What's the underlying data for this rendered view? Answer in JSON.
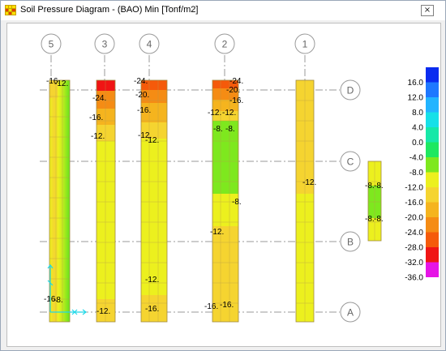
{
  "window": {
    "title": "Soil Pressure Diagram - (BAO)  Min  [Tonf/m2]",
    "close_label": "×"
  },
  "grid": {
    "columns": [
      "5",
      "3",
      "4",
      "2",
      "1"
    ],
    "rows": [
      "D",
      "C",
      "B",
      "A"
    ]
  },
  "strip_labels": {
    "s5": [
      "-16.",
      "-12.",
      "-16.",
      "-8."
    ],
    "s3": [
      "-24.",
      "-16.",
      "-12.",
      "-12."
    ],
    "s4": [
      "-24.",
      "-20.",
      "-16.",
      "-12.",
      "-12.",
      "-12.",
      "-16."
    ],
    "s2": [
      "-24.",
      "-20.",
      "-16.",
      "-12.",
      "-12.",
      "-8.",
      "-8.",
      "-8.",
      "-12.",
      "-16.",
      "-16."
    ],
    "s1": [
      "-12."
    ],
    "s6": [
      "-8.",
      "-8.",
      "-8.",
      "-8."
    ]
  },
  "legend": {
    "entries": [
      "16.0",
      "12.0",
      "8.0",
      "4.0",
      "0.0",
      "-4.0",
      "-8.0",
      "-12.0",
      "-16.0",
      "-20.0",
      "-24.0",
      "-28.0",
      "-32.0",
      "-36.0"
    ],
    "colors": [
      "#0a2cf0",
      "#1e78ff",
      "#22b4ff",
      "#16e0e8",
      "#16e8a8",
      "#1ee860",
      "#7ee81e",
      "#ecf01e",
      "#f5d430",
      "#f5b41e",
      "#f58c14",
      "#f55a0a",
      "#f01414",
      "#e614e6"
    ]
  }
}
